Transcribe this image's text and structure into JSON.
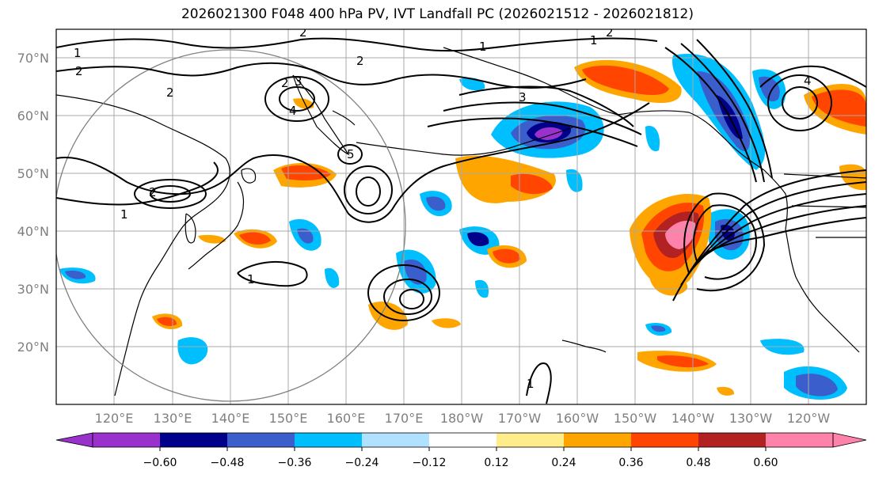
{
  "title": "2026021300 F048 400 hPa PV, IVT Landfall PC (2026021512 - 2026021812)",
  "map": {
    "region": "North Pacific",
    "lat_labels": [
      "70°N",
      "60°N",
      "50°N",
      "40°N",
      "30°N",
      "20°N"
    ],
    "lon_labels": [
      "120°E",
      "130°E",
      "140°E",
      "150°E",
      "160°E",
      "170°E",
      "180°W",
      "170°W",
      "160°W",
      "150°W",
      "140°W",
      "130°W",
      "120°W"
    ],
    "contour_label_values": [
      "1",
      "1",
      "1",
      "1",
      "1",
      "1",
      "2",
      "2",
      "2",
      "2",
      "2",
      "2",
      "2",
      "3",
      "3",
      "4",
      "4",
      "5"
    ]
  },
  "colorbar": {
    "ticks": [
      "−0.60",
      "−0.48",
      "−0.36",
      "−0.24",
      "−0.12",
      "0.12",
      "0.24",
      "0.36",
      "0.48",
      "0.60"
    ],
    "colors": [
      "#9932cc",
      "#00008b",
      "#3a5fcd",
      "#00bfff",
      "#b0e2ff",
      "#ffffff",
      "#ffec8b",
      "#ffa500",
      "#ff4500",
      "#b22222",
      "#ff82ab"
    ]
  }
}
